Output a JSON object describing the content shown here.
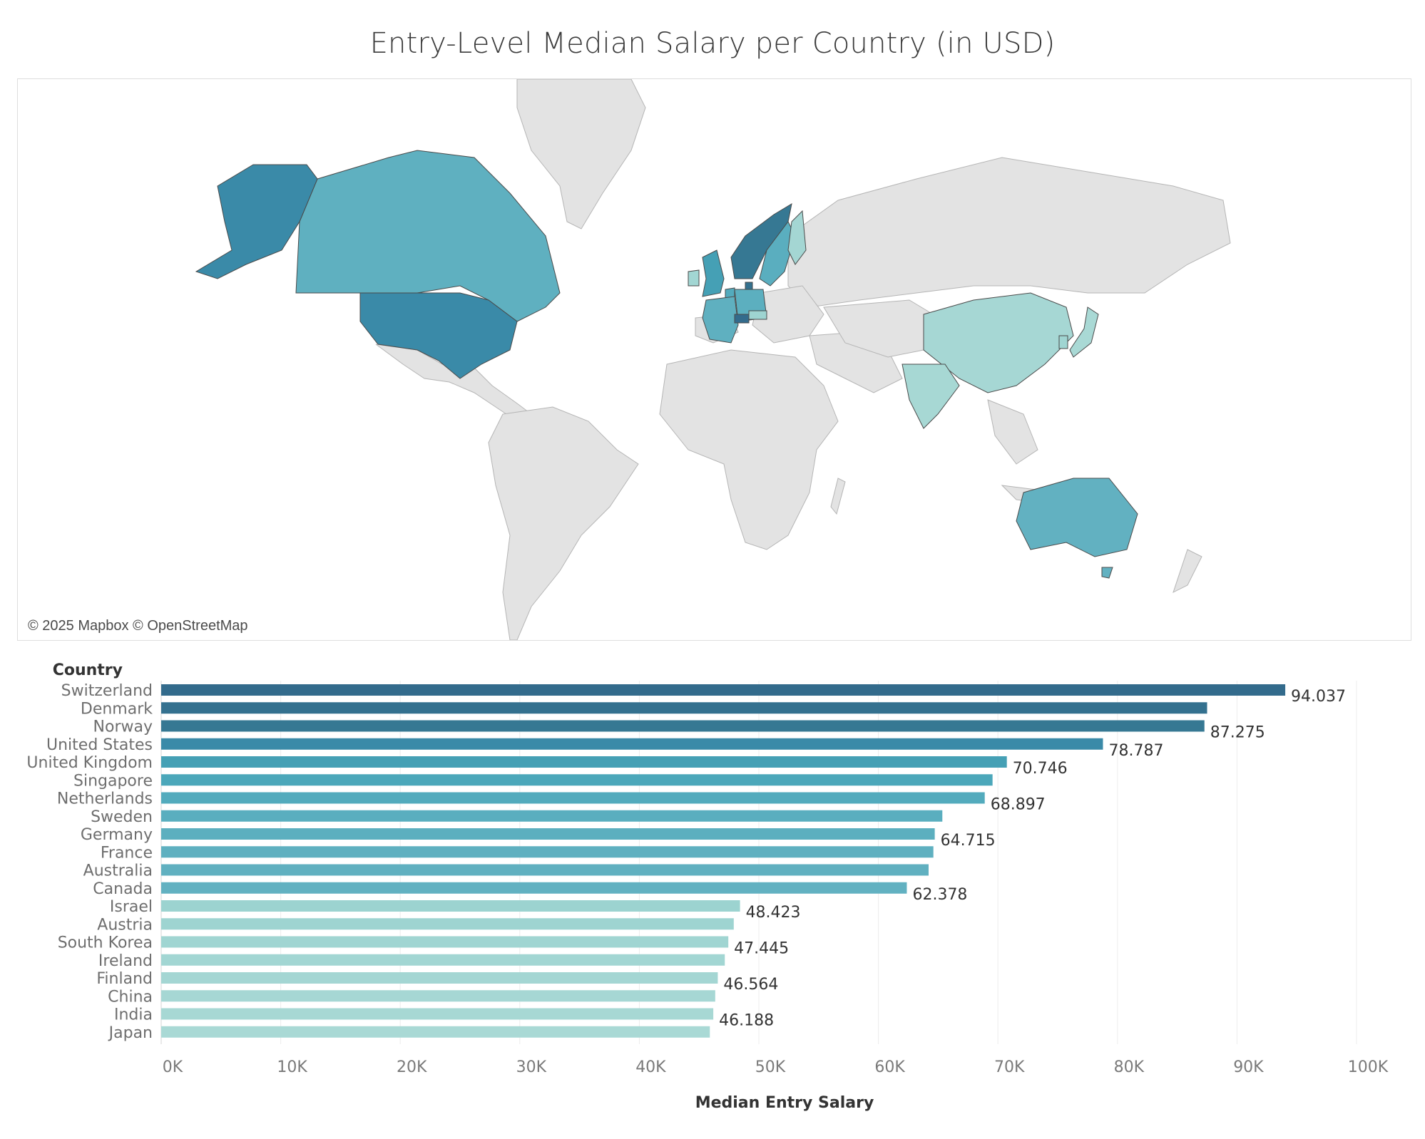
{
  "title": "Entry-Level Median Salary per Country (in USD)",
  "map": {
    "credit": "© 2025 Mapbox © OpenStreetMap",
    "base_color": "#e3e3e3",
    "border_color": "#b5b5b5",
    "highlighted_countries": [
      "Switzerland",
      "Denmark",
      "Norway",
      "United States",
      "United Kingdom",
      "Netherlands",
      "Sweden",
      "Germany",
      "France",
      "Australia",
      "Canada",
      "Austria",
      "Ireland",
      "Finland",
      "China",
      "India",
      "Japan",
      "South Korea"
    ]
  },
  "chart_data": {
    "type": "bar",
    "orientation": "horizontal",
    "title": "Entry-Level Median Salary per Country (in USD)",
    "category_axis_title": "Country",
    "xlabel": "Median Entry Salary",
    "xlim": [
      0,
      100000
    ],
    "xticks": [
      0,
      10000,
      20000,
      30000,
      40000,
      50000,
      60000,
      70000,
      80000,
      90000,
      100000
    ],
    "xtick_labels": [
      "0K",
      "10K",
      "20K",
      "30K",
      "40K",
      "50K",
      "60K",
      "70K",
      "80K",
      "90K",
      "100K"
    ],
    "grid": "vertical",
    "categories": [
      "Switzerland",
      "Denmark",
      "Norway",
      "United States",
      "United Kingdom",
      "Singapore",
      "Netherlands",
      "Sweden",
      "Germany",
      "France",
      "Australia",
      "Canada",
      "Israel",
      "Austria",
      "South Korea",
      "Ireland",
      "Finland",
      "China",
      "India",
      "Japan"
    ],
    "values": [
      94037,
      87500,
      87275,
      78787,
      70746,
      69550,
      68897,
      65350,
      64715,
      64600,
      64200,
      62378,
      48423,
      47900,
      47445,
      47150,
      46564,
      46350,
      46188,
      45900
    ],
    "data_labels": [
      "94.037",
      "",
      "87.275",
      "78.787",
      "70.746",
      "",
      "68.897",
      "",
      "64.715",
      "",
      "",
      "62.378",
      "48.423",
      "",
      "47.445",
      "",
      "46.564",
      "",
      "46.188",
      ""
    ],
    "colors": [
      "#336b8c",
      "#34718f",
      "#367893",
      "#3a8aa8",
      "#45a0b5",
      "#4ba7ba",
      "#53abbd",
      "#5aaebf",
      "#5cafbf",
      "#5fb0c0",
      "#60b0c0",
      "#62b1c1",
      "#9cd3d0",
      "#9ed4d1",
      "#a0d5d2",
      "#a2d6d3",
      "#a4d6d3",
      "#a6d7d4",
      "#a7d8d4",
      "#a9d9d5"
    ]
  }
}
